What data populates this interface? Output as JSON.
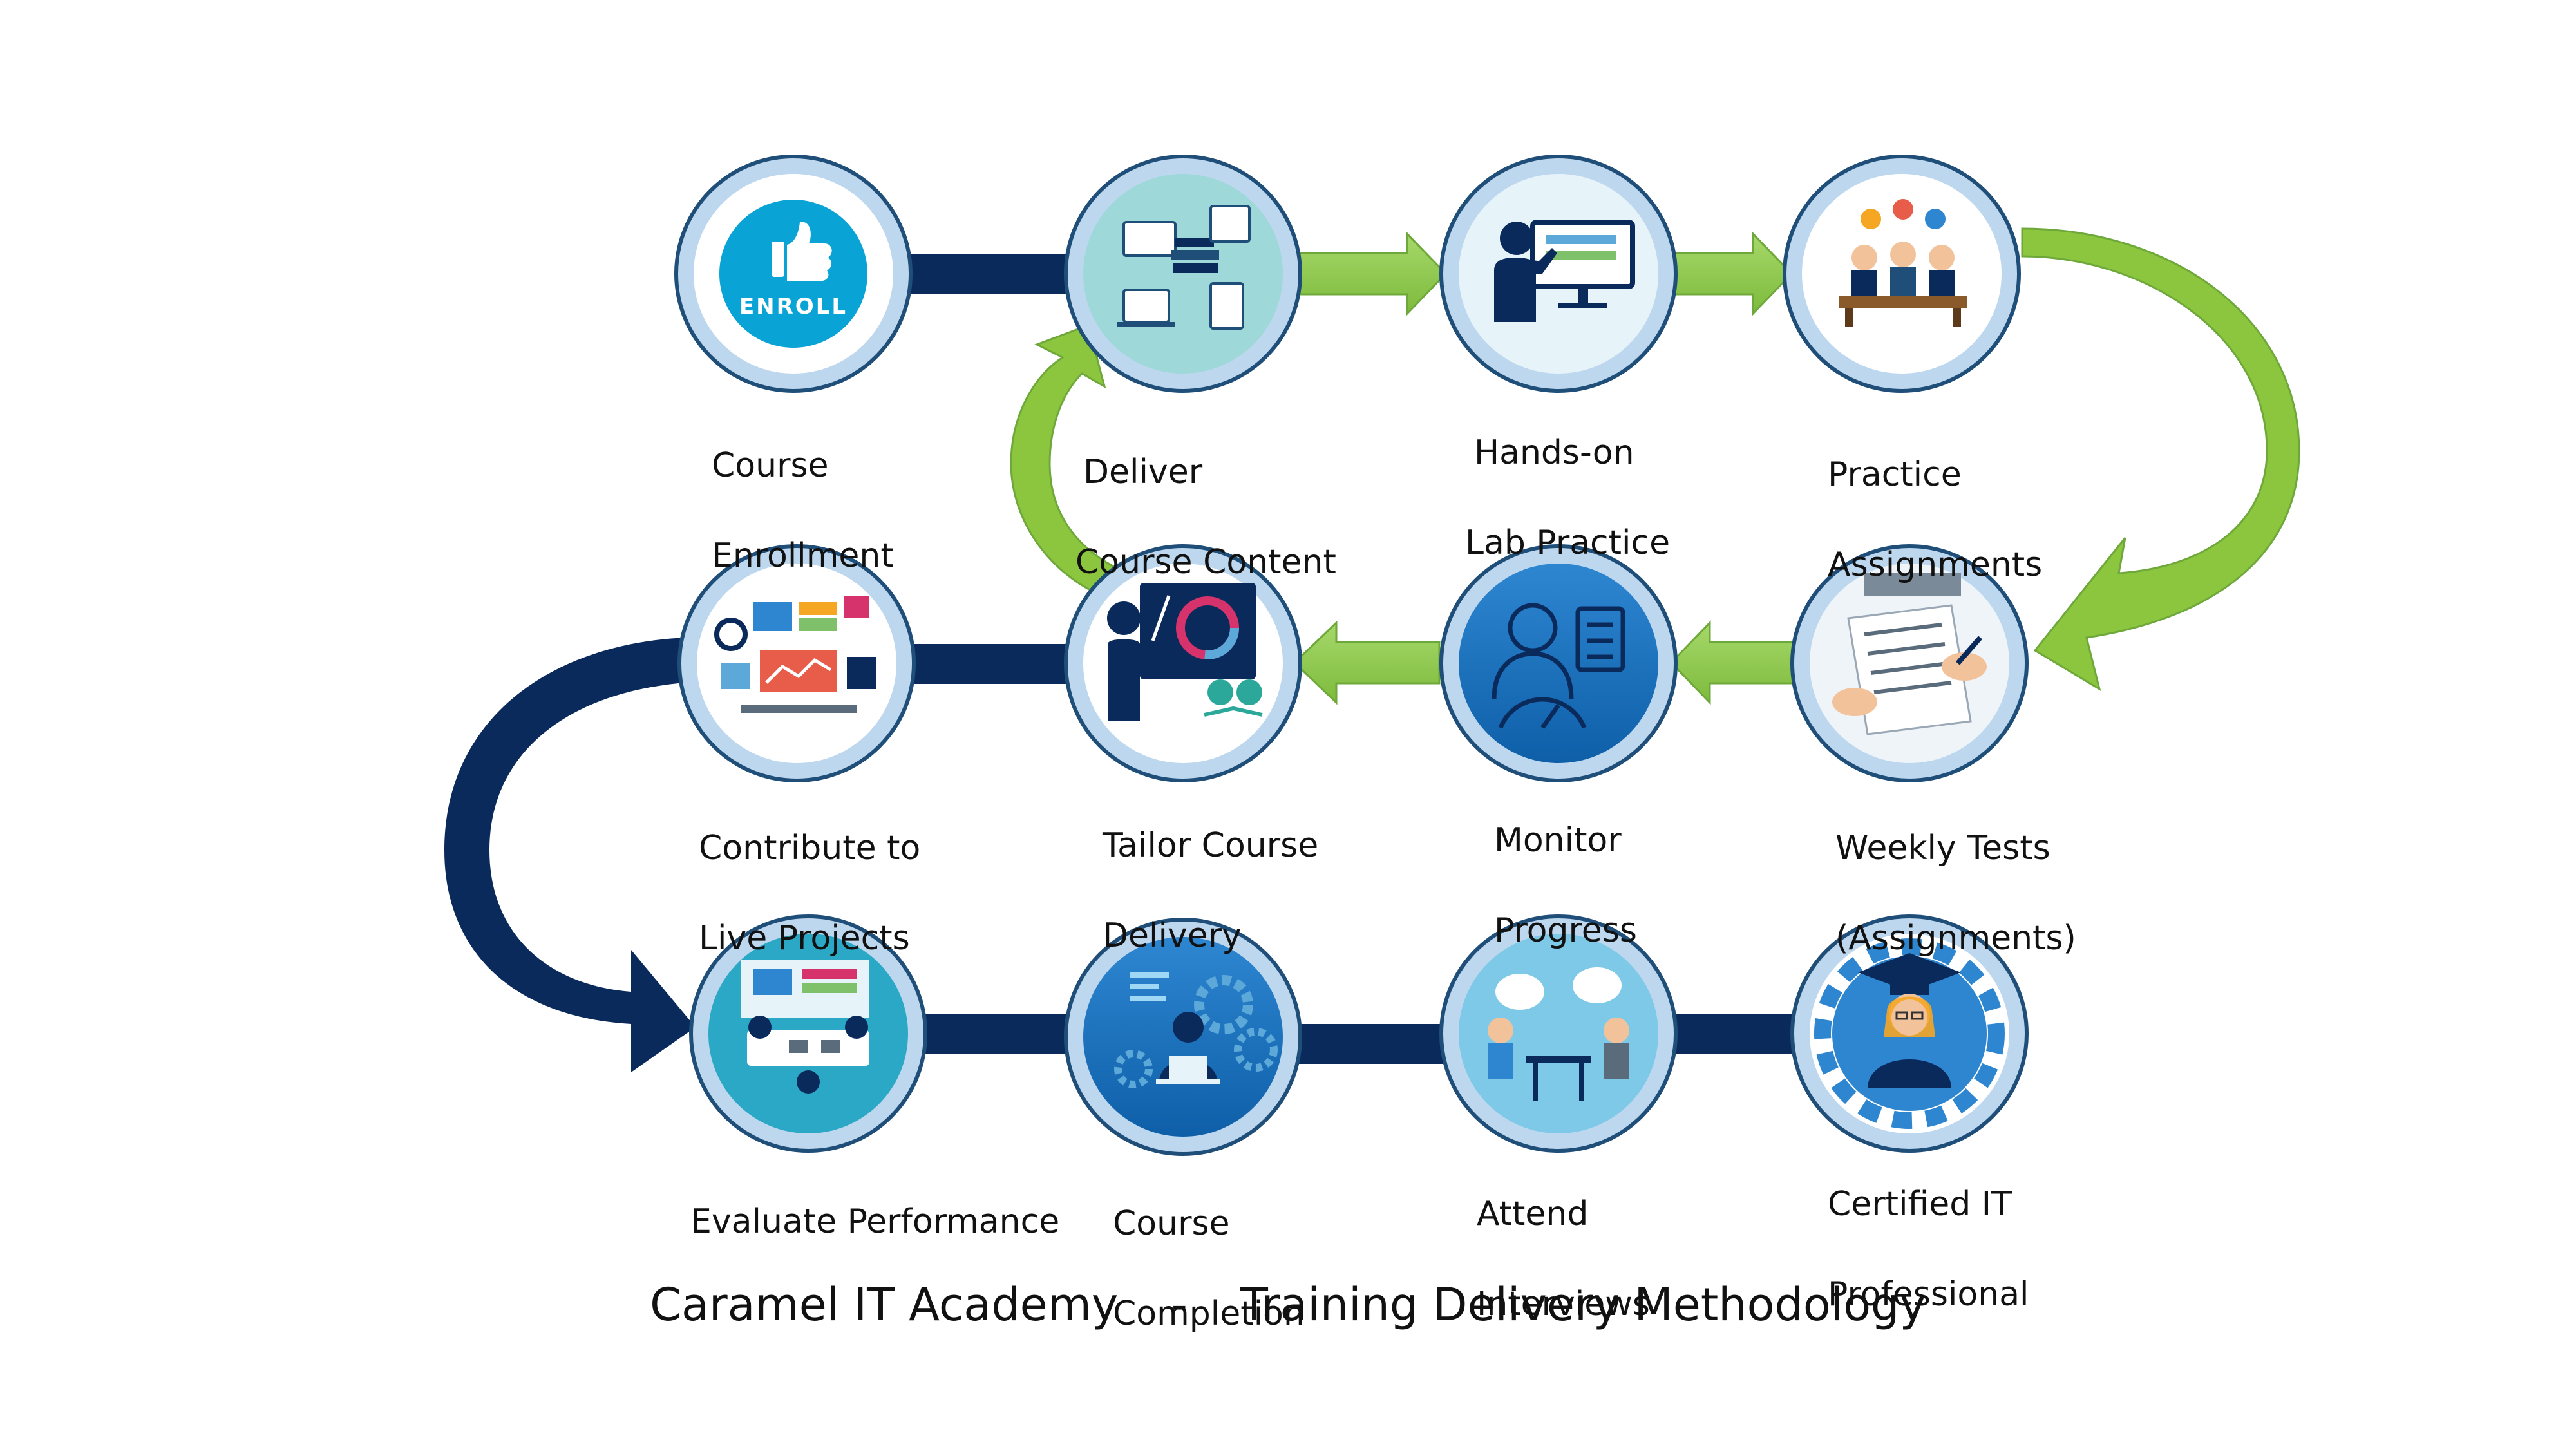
{
  "title": {
    "org": "Caramel IT Academy",
    "separator": "-",
    "subtitle": "Training Delivery Methodology"
  },
  "colors": {
    "navy": "#0B2A5C",
    "green": "#8CC63F",
    "green_dark": "#6FA83A",
    "circle_outer": "#BDD7EE",
    "circle_ring": "#1F4E79",
    "enroll_blue": "#0AA3D6"
  },
  "enroll_badge": {
    "text": "ENROLL",
    "icon": "thumbs-up-icon"
  },
  "steps": [
    {
      "id": "course-enrollment",
      "line1": "Course",
      "line2": "Enrollment",
      "icon": "enroll-badge-icon"
    },
    {
      "id": "deliver-course-content",
      "line1": "Deliver",
      "line2": "Course Content",
      "icon": "books-devices-icon"
    },
    {
      "id": "hands-on-lab-practice",
      "line1": "Hands-on",
      "line2": "Lab Practice",
      "icon": "presenter-monitor-icon"
    },
    {
      "id": "practice-assignments",
      "line1": "Practice",
      "line2": "Assignments",
      "icon": "classroom-icon"
    },
    {
      "id": "weekly-tests",
      "line1": "Weekly Tests",
      "line2": "(Assignments)",
      "icon": "writing-test-icon"
    },
    {
      "id": "monitor-progress",
      "line1": "Monitor",
      "line2": "Progress",
      "icon": "progress-gauge-icon"
    },
    {
      "id": "tailor-course-delivery",
      "line1": "Tailor Course",
      "line2": "Delivery",
      "icon": "teacher-board-icon"
    },
    {
      "id": "contribute-live-projects",
      "line1": "Contribute to",
      "line2": "Live Projects",
      "icon": "dashboard-analytics-icon"
    },
    {
      "id": "evaluate-performance",
      "line1": "Evaluate Performance",
      "line2": "",
      "icon": "team-meeting-icon"
    },
    {
      "id": "course-completion",
      "line1": "Course",
      "line2": "Completion",
      "icon": "gears-laptop-icon"
    },
    {
      "id": "attend-interviews",
      "line1": "Attend",
      "line2": "Interviews",
      "icon": "interview-icon"
    },
    {
      "id": "certified-it-professional",
      "line1": "Certified IT",
      "line2": "Professional",
      "icon": "graduate-gear-icon"
    }
  ]
}
